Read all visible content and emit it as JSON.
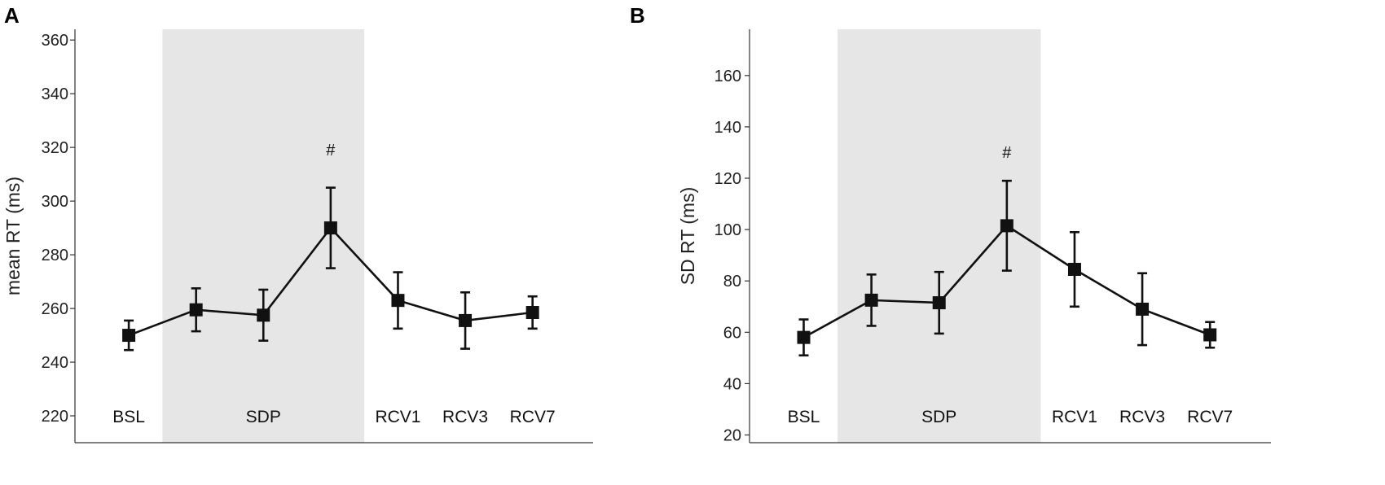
{
  "colors": {
    "shade": "#e6e6e6",
    "ink": "#111111",
    "axis": "#333333"
  },
  "chart_data": [
    {
      "type": "line",
      "panel_label": "A",
      "ylabel": "mean RT (ms)",
      "xlabel": "",
      "ylim": [
        210,
        364
      ],
      "yticks": [
        220,
        240,
        260,
        280,
        300,
        320,
        340,
        360
      ],
      "ytick_labels": [
        "220",
        "240",
        "260",
        "280",
        "300",
        "320",
        "340",
        "360"
      ],
      "x_positions": [
        1,
        2,
        3,
        4,
        5,
        6,
        7
      ],
      "xlim": [
        0.2,
        7.9
      ],
      "shaded_region": [
        1.5,
        4.5
      ],
      "condition_labels": [
        {
          "text": "BSL",
          "x": 1
        },
        {
          "text": "SDP",
          "x": 3
        },
        {
          "text": "RCV1",
          "x": 5
        },
        {
          "text": "RCV3",
          "x": 6
        },
        {
          "text": "RCV7",
          "x": 7
        }
      ],
      "values": [
        250,
        259.5,
        257.5,
        290,
        263,
        255.5,
        258.5
      ],
      "error": [
        5.5,
        8,
        9.5,
        15,
        10.5,
        10.5,
        6
      ],
      "annotations": [
        {
          "text": "#",
          "x": 4,
          "y": 317
        }
      ]
    },
    {
      "type": "line",
      "panel_label": "B",
      "ylabel": "SD RT (ms)",
      "xlabel": "",
      "ylim": [
        17,
        178
      ],
      "yticks": [
        20,
        40,
        60,
        80,
        100,
        120,
        140,
        160
      ],
      "ytick_labels": [
        "20",
        "40",
        "60",
        "80",
        "100",
        "120",
        "140",
        "160"
      ],
      "x_positions": [
        1,
        2,
        3,
        4,
        5,
        6,
        7
      ],
      "xlim": [
        0.2,
        7.9
      ],
      "shaded_region": [
        1.5,
        4.5
      ],
      "condition_labels": [
        {
          "text": "BSL",
          "x": 1
        },
        {
          "text": "SDP",
          "x": 3
        },
        {
          "text": "RCV1",
          "x": 5
        },
        {
          "text": "RCV3",
          "x": 6
        },
        {
          "text": "RCV7",
          "x": 7
        }
      ],
      "values": [
        58,
        72.5,
        71.5,
        101.5,
        84.5,
        69,
        59
      ],
      "error": [
        7,
        10,
        12,
        17.5,
        14.5,
        14,
        5
      ],
      "annotations": [
        {
          "text": "#",
          "x": 4,
          "y": 128
        }
      ]
    }
  ]
}
